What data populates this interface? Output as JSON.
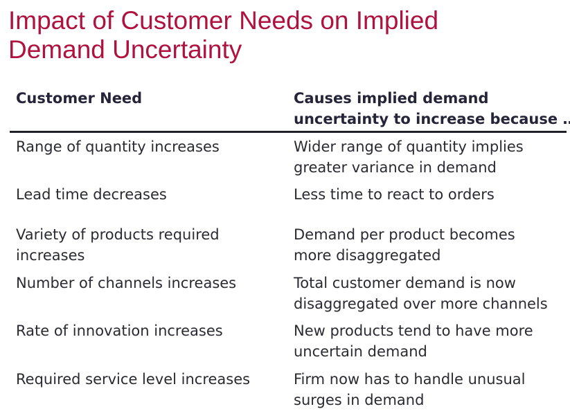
{
  "title": {
    "line1": "Impact of Customer Needs on Implied",
    "line2": "Demand Uncertainty"
  },
  "table": {
    "headers": {
      "need": "Customer Need",
      "cause_line1": "Causes implied demand",
      "cause_line2": "uncertainty to increase because …"
    },
    "rows": [
      {
        "need": [
          "Range of quantity increases"
        ],
        "cause": [
          "Wider range of quantity implies",
          "greater variance in demand"
        ]
      },
      {
        "need": [
          "Lead time decreases"
        ],
        "cause": [
          "Less time to react to orders"
        ]
      },
      {
        "need": [
          "Variety of products required",
          "increases"
        ],
        "cause": [
          "Demand per product becomes",
          "more disaggregated"
        ]
      },
      {
        "need": [
          "Number of channels increases"
        ],
        "cause": [
          "Total customer demand is now",
          "disaggregated over more channels"
        ]
      },
      {
        "need": [
          "Rate of innovation increases"
        ],
        "cause": [
          "New products tend to have more",
          "uncertain demand"
        ]
      },
      {
        "need": [
          "Required service level increases"
        ],
        "cause": [
          "Firm now has to handle unusual",
          "surges in demand"
        ]
      }
    ]
  }
}
